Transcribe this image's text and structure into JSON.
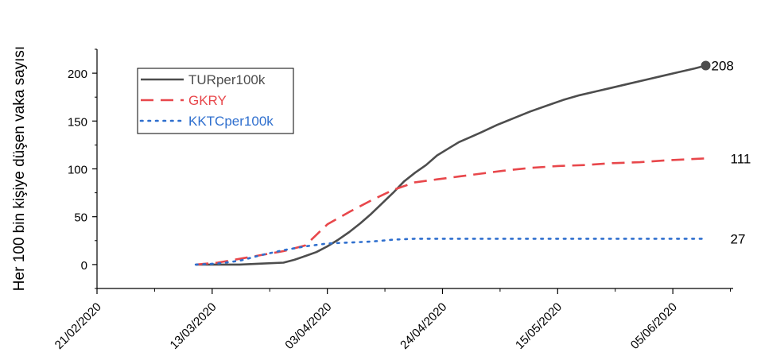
{
  "chart_data": {
    "type": "line",
    "title": "",
    "xlabel": "",
    "ylabel": "Her 100 bin kişiye düşen vaka sayısı",
    "xlim": [
      "2020-02-21",
      "2020-06-16"
    ],
    "ylim": [
      -25,
      225
    ],
    "x_ticks": [
      "21/02/2020",
      "13/03/2020",
      "03/04/2020",
      "24/04/2020",
      "15/05/2020",
      "05/06/2020"
    ],
    "y_ticks": [
      0,
      50,
      100,
      150,
      200
    ],
    "grid": false,
    "legend": "top-left",
    "series": [
      {
        "name": "TURper100k",
        "color": "#4d4d4d",
        "style": "solid",
        "end_label": "208",
        "end_marker": true,
        "points": [
          [
            "2020-03-10",
            0
          ],
          [
            "2020-03-14",
            0
          ],
          [
            "2020-03-18",
            0
          ],
          [
            "2020-03-22",
            1
          ],
          [
            "2020-03-26",
            2
          ],
          [
            "2020-03-28",
            5
          ],
          [
            "2020-03-30",
            9
          ],
          [
            "2020-04-01",
            13
          ],
          [
            "2020-04-03",
            19
          ],
          [
            "2020-04-05",
            26
          ],
          [
            "2020-04-07",
            34
          ],
          [
            "2020-04-09",
            43
          ],
          [
            "2020-04-11",
            53
          ],
          [
            "2020-04-13",
            64
          ],
          [
            "2020-04-15",
            75
          ],
          [
            "2020-04-17",
            87
          ],
          [
            "2020-04-19",
            96
          ],
          [
            "2020-04-21",
            104
          ],
          [
            "2020-04-23",
            114
          ],
          [
            "2020-04-25",
            121
          ],
          [
            "2020-04-27",
            128
          ],
          [
            "2020-04-29",
            133
          ],
          [
            "2020-05-01",
            138
          ],
          [
            "2020-05-04",
            146
          ],
          [
            "2020-05-07",
            153
          ],
          [
            "2020-05-10",
            160
          ],
          [
            "2020-05-13",
            166
          ],
          [
            "2020-05-16",
            172
          ],
          [
            "2020-05-19",
            177
          ],
          [
            "2020-05-22",
            181
          ],
          [
            "2020-05-25",
            185
          ],
          [
            "2020-05-28",
            189
          ],
          [
            "2020-05-31",
            193
          ],
          [
            "2020-06-03",
            197
          ],
          [
            "2020-06-06",
            201
          ],
          [
            "2020-06-09",
            205
          ],
          [
            "2020-06-11",
            208
          ]
        ]
      },
      {
        "name": "GKRY",
        "color": "#e8474b",
        "style": "dashed",
        "end_label": "111",
        "end_marker": false,
        "points": [
          [
            "2020-03-10",
            0
          ],
          [
            "2020-03-14",
            2
          ],
          [
            "2020-03-18",
            6
          ],
          [
            "2020-03-22",
            10
          ],
          [
            "2020-03-26",
            14
          ],
          [
            "2020-03-30",
            20
          ],
          [
            "2020-04-03",
            42
          ],
          [
            "2020-04-07",
            55
          ],
          [
            "2020-04-11",
            67
          ],
          [
            "2020-04-15",
            78
          ],
          [
            "2020-04-19",
            86
          ],
          [
            "2020-04-23",
            89
          ],
          [
            "2020-04-27",
            92
          ],
          [
            "2020-05-01",
            95
          ],
          [
            "2020-05-05",
            98
          ],
          [
            "2020-05-10",
            101
          ],
          [
            "2020-05-15",
            103
          ],
          [
            "2020-05-20",
            104
          ],
          [
            "2020-05-25",
            106
          ],
          [
            "2020-05-30",
            107
          ],
          [
            "2020-06-04",
            109
          ],
          [
            "2020-06-11",
            111
          ]
        ]
      },
      {
        "name": "KKTCper100k",
        "color": "#2f6fce",
        "style": "dotted",
        "end_label": "27",
        "end_marker": false,
        "points": [
          [
            "2020-03-10",
            0
          ],
          [
            "2020-03-14",
            1
          ],
          [
            "2020-03-18",
            4
          ],
          [
            "2020-03-22",
            10
          ],
          [
            "2020-03-26",
            15
          ],
          [
            "2020-03-30",
            19
          ],
          [
            "2020-04-03",
            22
          ],
          [
            "2020-04-07",
            23
          ],
          [
            "2020-04-11",
            24
          ],
          [
            "2020-04-15",
            26
          ],
          [
            "2020-04-19",
            27
          ],
          [
            "2020-05-01",
            27
          ],
          [
            "2020-05-15",
            27
          ],
          [
            "2020-06-01",
            27
          ],
          [
            "2020-06-11",
            27
          ]
        ]
      }
    ]
  }
}
